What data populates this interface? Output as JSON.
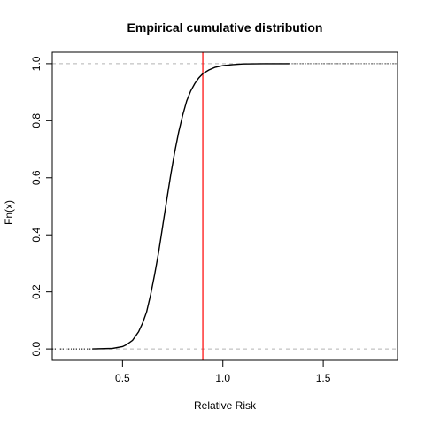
{
  "chart_data": {
    "type": "line",
    "title": "Empirical cumulative distribution",
    "xlabel": "Relative Risk",
    "ylabel": "Fn(x)",
    "xlim": [
      0.15,
      1.87
    ],
    "ylim": [
      -0.04,
      1.04
    ],
    "x_ticks": [
      0.5,
      1.0,
      1.5
    ],
    "x_tick_labels": [
      "0.5",
      "1.0",
      "1.5"
    ],
    "y_ticks": [
      0.0,
      0.2,
      0.4,
      0.6,
      0.8,
      1.0
    ],
    "y_tick_labels": [
      "0.0",
      "0.2",
      "0.4",
      "0.6",
      "0.8",
      "1.0"
    ],
    "reference_lines": {
      "horizontal": [
        0.0,
        1.0
      ],
      "horizontal_style": "dashed",
      "horizontal_color": "#b3b3b3",
      "vertical": [
        0.9
      ],
      "vertical_color": "#ff0000"
    },
    "series": [
      {
        "color": "#000000",
        "x": [
          0.35,
          0.45,
          0.5,
          0.52,
          0.55,
          0.58,
          0.6,
          0.62,
          0.64,
          0.66,
          0.68,
          0.7,
          0.72,
          0.74,
          0.76,
          0.78,
          0.8,
          0.82,
          0.84,
          0.86,
          0.88,
          0.9,
          0.93,
          0.96,
          1.0,
          1.05,
          1.1,
          1.2,
          1.33
        ],
        "y": [
          0.0,
          0.002,
          0.008,
          0.015,
          0.03,
          0.06,
          0.09,
          0.13,
          0.19,
          0.26,
          0.34,
          0.43,
          0.52,
          0.61,
          0.69,
          0.76,
          0.82,
          0.87,
          0.905,
          0.93,
          0.95,
          0.965,
          0.978,
          0.987,
          0.993,
          0.997,
          0.999,
          1.0,
          1.0
        ]
      }
    ],
    "grid": false,
    "legend": "none"
  }
}
